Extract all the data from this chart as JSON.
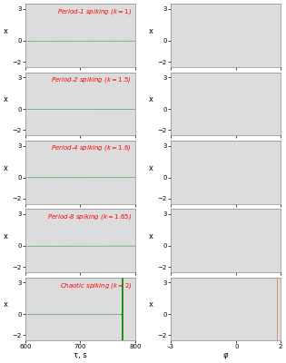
{
  "row_labels": [
    "Period-1 spiking ($k = 1$)",
    "Period-2 spiking ($k = 1.5$)",
    "Period-4 spiking ($k = 1.6$)",
    "Period-8 spiking ($k = 1.65$)",
    "Chaotic spiking ($k = 2$)"
  ],
  "time_xlim": [
    600,
    800
  ],
  "time_xticks": [
    600,
    700,
    800
  ],
  "time_ylim": [
    -2.5,
    3.5
  ],
  "time_yticks": [
    -2,
    0,
    3
  ],
  "phase_xlim": [
    -3,
    2
  ],
  "phase_xticks": [
    -3,
    0,
    2
  ],
  "phase_ylim": [
    -2.5,
    3.5
  ],
  "phase_yticks": [
    -2,
    0,
    3
  ],
  "time_color": "#1A8C1A",
  "phase_color": "#E07030",
  "bg_color": "#DCDCDC",
  "xlabel_time": "τ, s",
  "xlabel_phase": "φ",
  "ylabel": "x",
  "k_values": [
    1.0,
    1.5,
    1.6,
    1.65,
    2.0
  ],
  "figsize": [
    3.15,
    4.0
  ],
  "dpi": 100
}
